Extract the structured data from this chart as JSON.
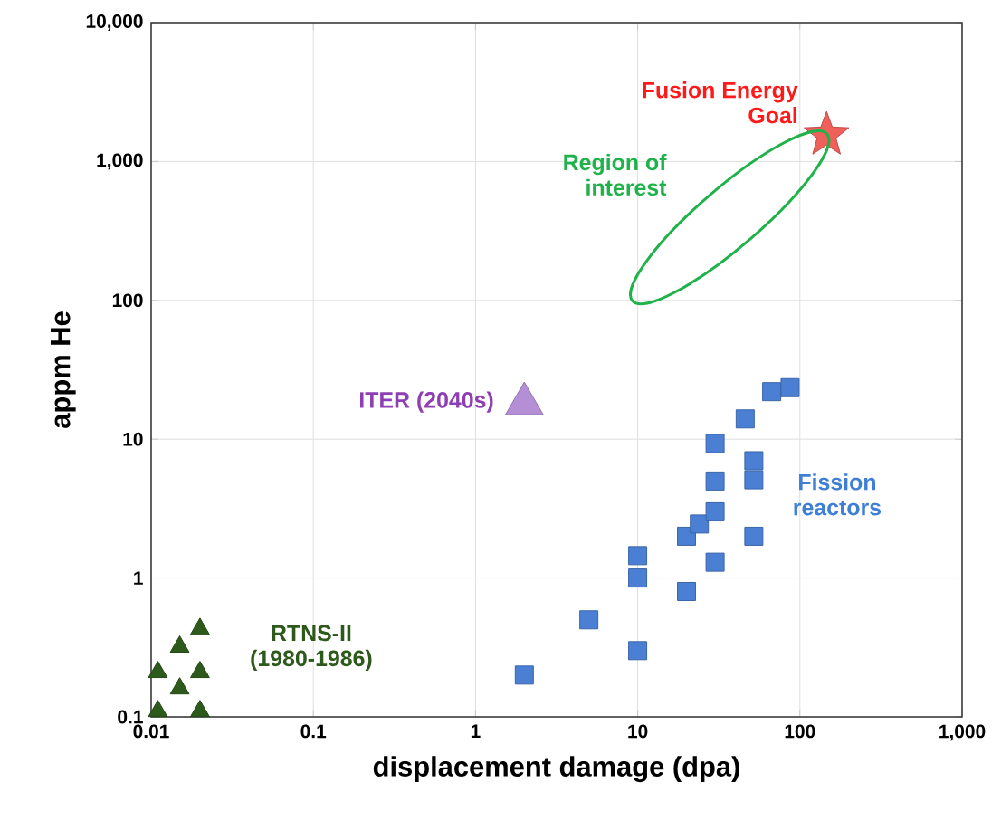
{
  "chart_data": {
    "type": "scatter",
    "xlabel": "displacement damage (dpa)",
    "ylabel": "appm He",
    "log": "xy",
    "grid": true,
    "xlim": [
      0.01,
      1000
    ],
    "ylim": [
      0.1,
      10000
    ],
    "xticks": [
      0.01,
      0.1,
      1,
      10,
      100,
      {
        "value": 1000,
        "label": "1,000"
      }
    ],
    "yticks": [
      0.1,
      1,
      10,
      100,
      {
        "value": 1000,
        "label": "1,000"
      },
      {
        "value": 10000,
        "label": "10,000"
      }
    ],
    "series": [
      {
        "name": "Fission reactors",
        "color": "#4a7fd4",
        "marker": "square",
        "x": [
          2,
          5,
          10,
          10,
          10,
          20,
          20,
          24,
          30,
          30,
          30,
          30,
          46,
          52,
          52,
          52,
          67,
          87
        ],
        "values": [
          0.2,
          0.5,
          0.3,
          1.0,
          1.45,
          0.8,
          2.0,
          2.45,
          3.0,
          1.3,
          5.0,
          9.3,
          14,
          7,
          5.1,
          2.0,
          22,
          23.5
        ]
      },
      {
        "name": "ITER (2040s)",
        "color": "#b48fd6",
        "marker": "triangle",
        "x": [
          2
        ],
        "values": [
          18
        ]
      },
      {
        "name": "RTNS-II (1980-1986)",
        "color": "#2d5a1b",
        "marker": "triangle",
        "x": [
          0.011,
          0.011,
          0.015,
          0.015,
          0.02,
          0.02,
          0.02
        ],
        "values": [
          0.11,
          0.21,
          0.16,
          0.32,
          0.11,
          0.21,
          0.43
        ]
      },
      {
        "name": "Fusion Energy Goal",
        "color": "#f0605a",
        "marker": "star",
        "x": [
          146
        ],
        "values": [
          1550
        ]
      }
    ],
    "annotations": [
      "Region of interest"
    ]
  }
}
